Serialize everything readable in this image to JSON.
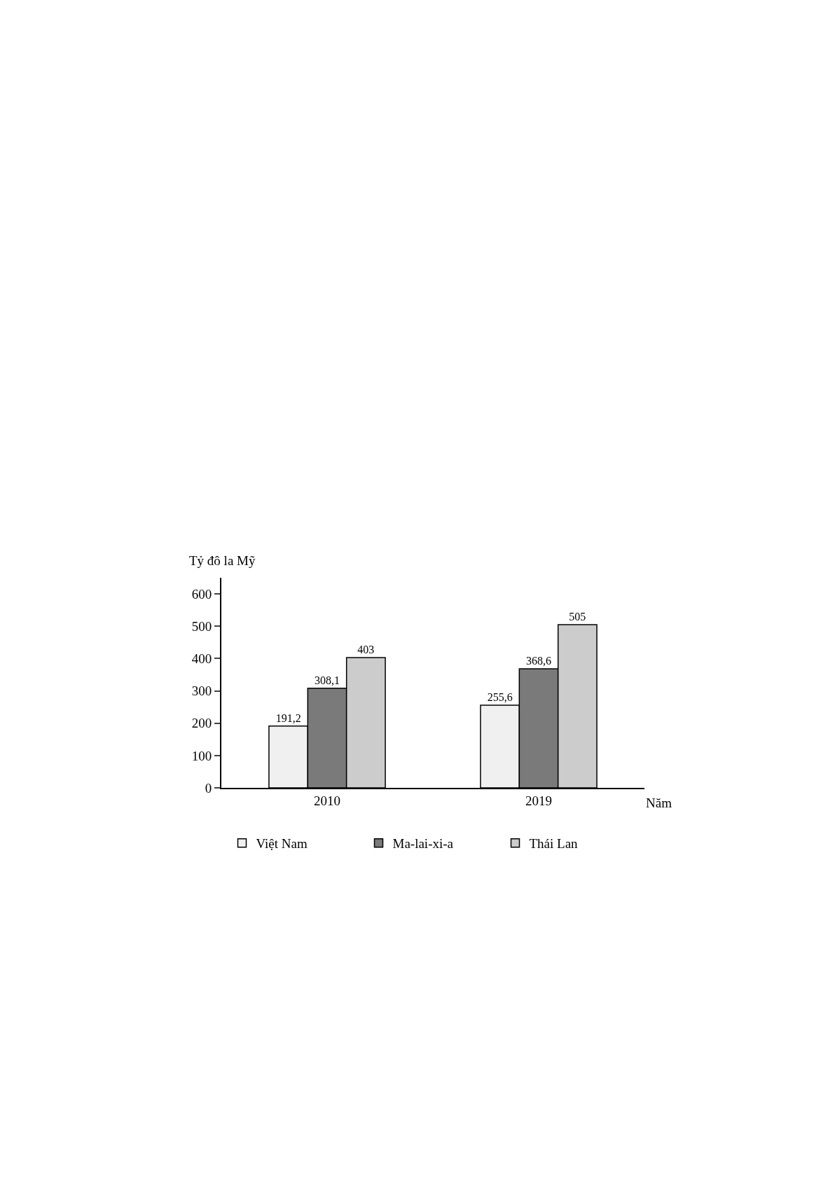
{
  "chart_data": {
    "type": "bar",
    "ylabel": "Tỷ đô la Mỹ",
    "xlabel": "Năm",
    "categories": [
      "2010",
      "2019"
    ],
    "series": [
      {
        "name": "Việt Nam",
        "color": "#f0f0f0",
        "values": [
          191.2,
          255.6
        ],
        "value_labels": [
          "191,2",
          "255,6"
        ]
      },
      {
        "name": "Ma-lai-xi-a",
        "color": "#7a7a7a",
        "values": [
          308.1,
          368.6
        ],
        "value_labels": [
          "308,1",
          "368,6"
        ]
      },
      {
        "name": "Thái Lan",
        "color": "#cccccc",
        "values": [
          403,
          505
        ],
        "value_labels": [
          "403",
          "505"
        ]
      }
    ],
    "ylim": [
      0,
      650
    ],
    "yticks": [
      0,
      100,
      200,
      300,
      400,
      500,
      600
    ],
    "legend": "bottom"
  }
}
